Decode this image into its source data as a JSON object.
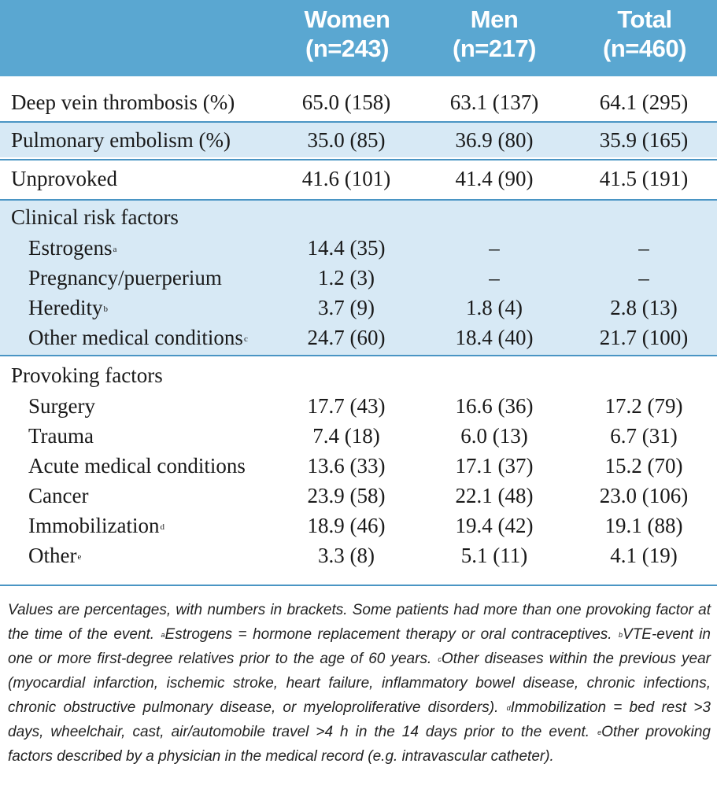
{
  "headers": [
    {
      "name": "Women",
      "n": "(n=243)"
    },
    {
      "name": "Men",
      "n": "(n=217)"
    },
    {
      "name": "Total",
      "n": "(n=460)"
    }
  ],
  "rows": {
    "dvt": {
      "label": "Deep vein thrombosis (%)",
      "w": "65.0 (158)",
      "m": "63.1 (137)",
      "t": "64.1 (295)"
    },
    "pe": {
      "label": "Pulmonary embolism (%)",
      "w": "35.0 (85)",
      "m": "36.9 (80)",
      "t": "35.9 (165)"
    },
    "unprov": {
      "label": "Unprovoked",
      "w": "41.6 (101)",
      "m": "41.4 (90)",
      "t": "41.5 (191)"
    },
    "clin_head": "Clinical risk factors",
    "estrogens": {
      "label": "Estrogens",
      "sup": "a",
      "w": "14.4 (35)",
      "m": "–",
      "t": "–"
    },
    "pregnancy": {
      "label": "Pregnancy/puerperium",
      "w": "1.2 (3)",
      "m": "–",
      "t": "–"
    },
    "heredity": {
      "label": "Heredity",
      "sup": "b",
      "w": "3.7 (9)",
      "m": "1.8 (4)",
      "t": "2.8 (13)"
    },
    "other_med": {
      "label": "Other medical conditions",
      "sup": "c",
      "w": "24.7 (60)",
      "m": "18.4 (40)",
      "t": "21.7 (100)"
    },
    "prov_head": "Provoking factors",
    "surgery": {
      "label": "Surgery",
      "w": "17.7 (43)",
      "m": "16.6 (36)",
      "t": "17.2 (79)"
    },
    "trauma": {
      "label": "Trauma",
      "w": "7.4 (18)",
      "m": "6.0 (13)",
      "t": "6.7 (31)"
    },
    "acute": {
      "label": "Acute medical conditions",
      "w": "13.6 (33)",
      "m": "17.1 (37)",
      "t": "15.2 (70)"
    },
    "cancer": {
      "label": "Cancer",
      "w": "23.9 (58)",
      "m": "22.1 (48)",
      "t": "23.0 (106)"
    },
    "immob": {
      "label": "Immobilization",
      "sup": "d",
      "w": "18.9 (46)",
      "m": "19.4 (42)",
      "t": "19.1 (88)"
    },
    "other": {
      "label": "Other",
      "sup": "e",
      "w": "3.3 (8)",
      "m": "5.1 (11)",
      "t": "4.1 (19)"
    }
  },
  "footnote": {
    "p1": "Values are percentages, with numbers in brackets. Some patients had more than one provoking factor at the time of the event. ",
    "a_mark": "a",
    "a_text": "Estrogens = hormone replacement therapy or oral contraceptives. ",
    "b_mark": "b",
    "b_text": "VTE-event in one or more first-degree relatives prior to the age of 60 years. ",
    "c_mark": "c",
    "c_text": "Other diseases within the previous year (myocardial infarction, ischemic stroke, heart failure, inflammatory bowel disease, chronic infections, chronic obstructive pulmonary disease, or myeloproliferative disorders). ",
    "d_mark": "d",
    "d_text": "Immobilization = bed rest >3 days, wheelchair, cast, air/automobile travel >4 h in the 14 days prior to the event. ",
    "e_mark": "e",
    "e_text": "Other provoking factors described by a physician in the medical record (e.g. intravascular catheter)."
  }
}
